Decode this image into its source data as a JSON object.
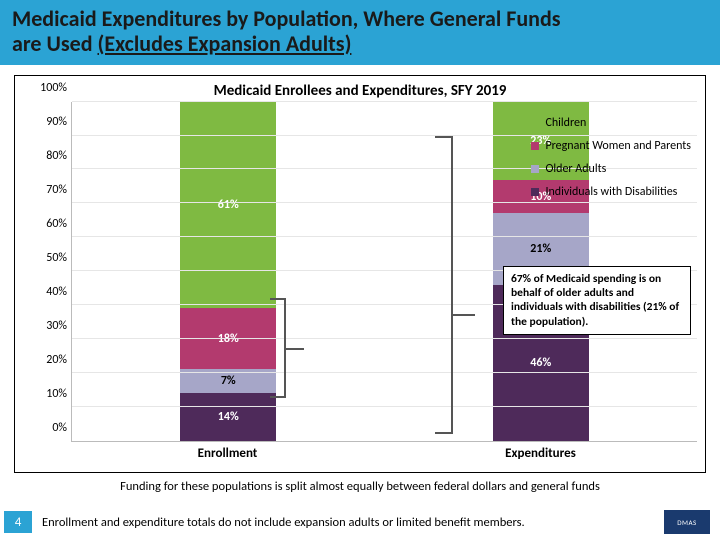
{
  "header": {
    "line1": "Medicaid Expenditures by Population, Where General Funds",
    "line2_a": "are Used ",
    "line2_b": "(Excludes Expansion Adults)"
  },
  "chart": {
    "title": "Medicaid Enrollees and Expenditures, SFY 2019",
    "type": "stacked-bar",
    "ylim": [
      0,
      100
    ],
    "ytick_step": 10,
    "yticks": [
      "0%",
      "10%",
      "20%",
      "30%",
      "40%",
      "50%",
      "60%",
      "70%",
      "80%",
      "90%",
      "100%"
    ],
    "categories": [
      "Enrollment",
      "Expenditures"
    ],
    "series": [
      {
        "name": "Individuals with Disabilities",
        "color": "#4e2a5a"
      },
      {
        "name": "Older Adults",
        "color": "#a6a6c8"
      },
      {
        "name": "Pregnant Women and Parents",
        "color": "#b33a6e"
      },
      {
        "name": "Children",
        "color": "#7fba42"
      }
    ],
    "stacks": {
      "Enrollment": {
        "Individuals with Disabilities": 14,
        "Older Adults": 7,
        "Pregnant Women and Parents": 18,
        "Children": 61
      },
      "Expenditures": {
        "Individuals with Disabilities": 46,
        "Older Adults": 21,
        "Pregnant Women and Parents": 10,
        "Children": 23
      }
    },
    "labels": {
      "Enrollment": {
        "Individuals with Disabilities": "14%",
        "Older Adults": "7%",
        "Pregnant Women and Parents": "18%",
        "Children": "61%"
      },
      "Expenditures": {
        "Individuals with Disabilities": "46%",
        "Older Adults": "21%",
        "Pregnant Women and Parents": "10%",
        "Children": "23%"
      }
    },
    "grid_color": "#e6e6e6",
    "background_color": "#ffffff"
  },
  "legend": {
    "items": [
      {
        "label": "Children",
        "color": "#7fba42"
      },
      {
        "label": "Pregnant Women and Parents",
        "color": "#b33a6e"
      },
      {
        "label": "Older Adults",
        "color": "#a6a6c8"
      },
      {
        "label": "Individuals with Disabilities",
        "color": "#4e2a5a"
      }
    ]
  },
  "callout": "67% of Medicaid spending is on behalf of older adults and individuals with disabilities (21% of the population).",
  "footnote1": "Funding for these populations is split almost equally between federal dollars and general funds",
  "footnote2": "Enrollment and expenditure totals do not include expansion adults or limited benefit members.",
  "page_number": "4",
  "logo_text": "DMAS"
}
